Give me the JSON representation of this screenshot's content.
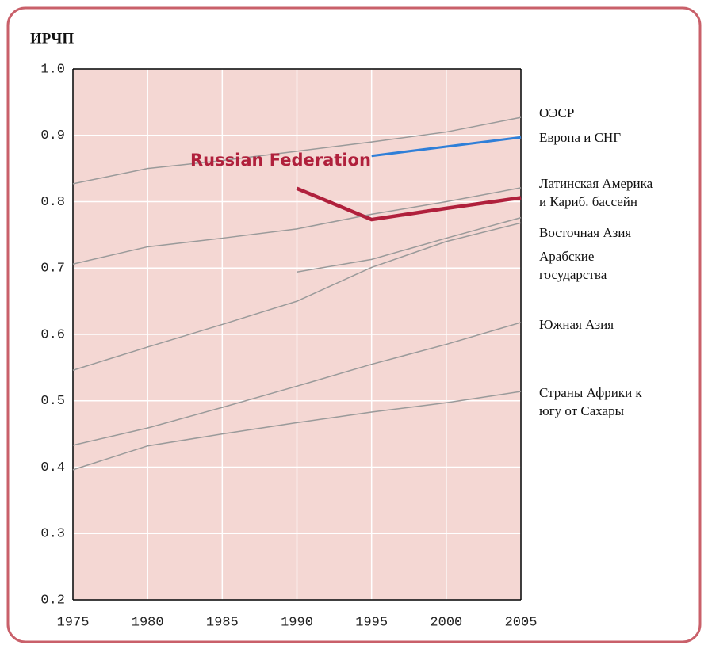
{
  "chart_data": {
    "type": "line",
    "title": "ИРЧП",
    "x": [
      1975,
      1980,
      1985,
      1990,
      1995,
      2000,
      2005
    ],
    "xlim": [
      1975,
      2005
    ],
    "xticks": [
      1975,
      1980,
      1985,
      1990,
      1995,
      2000,
      2005
    ],
    "ylim": [
      0.2,
      1
    ],
    "yticks": [
      0.2,
      0.3,
      0.4,
      0.5,
      0.6,
      0.7,
      0.8,
      0.9,
      {
        "value": 1,
        "label": "1.0"
      }
    ],
    "grid": true,
    "series": [
      {
        "name": "ОЭСР",
        "color": "#9a9a9a",
        "values": [
          0.827,
          0.85,
          0.862,
          0.876,
          0.89,
          0.905,
          0.927
        ]
      },
      {
        "name": "Европа и СНГ",
        "color": "#2f7fd8",
        "values": [
          null,
          null,
          null,
          null,
          0.869,
          0.883,
          0.897
        ]
      },
      {
        "name": "Латинская Америка и Кариб. бассейн",
        "color": "#9a9a9a",
        "values": [
          0.706,
          0.732,
          0.745,
          0.759,
          0.781,
          0.8,
          0.821
        ]
      },
      {
        "name": "Восточная Азия",
        "color": "#9a9a9a",
        "values": [
          null,
          null,
          null,
          0.694,
          0.713,
          0.745,
          0.776
        ]
      },
      {
        "name": "Арабские государства",
        "color": "#9a9a9a",
        "values": [
          0.546,
          0.581,
          0.615,
          0.65,
          0.701,
          0.74,
          0.768
        ]
      },
      {
        "name": "Южная Азия",
        "color": "#9a9a9a",
        "values": [
          0.433,
          0.459,
          0.49,
          0.522,
          0.555,
          0.585,
          0.618
        ]
      },
      {
        "name": "Страны Африки к югу от Сахары",
        "color": "#9a9a9a",
        "values": [
          0.396,
          0.432,
          0.45,
          0.467,
          0.483,
          0.497,
          0.514
        ]
      },
      {
        "name": "Russian Federation",
        "color": "#b0203c",
        "values": [
          null,
          null,
          null,
          0.82,
          0.773,
          0.79,
          0.806
        ]
      }
    ]
  }
}
